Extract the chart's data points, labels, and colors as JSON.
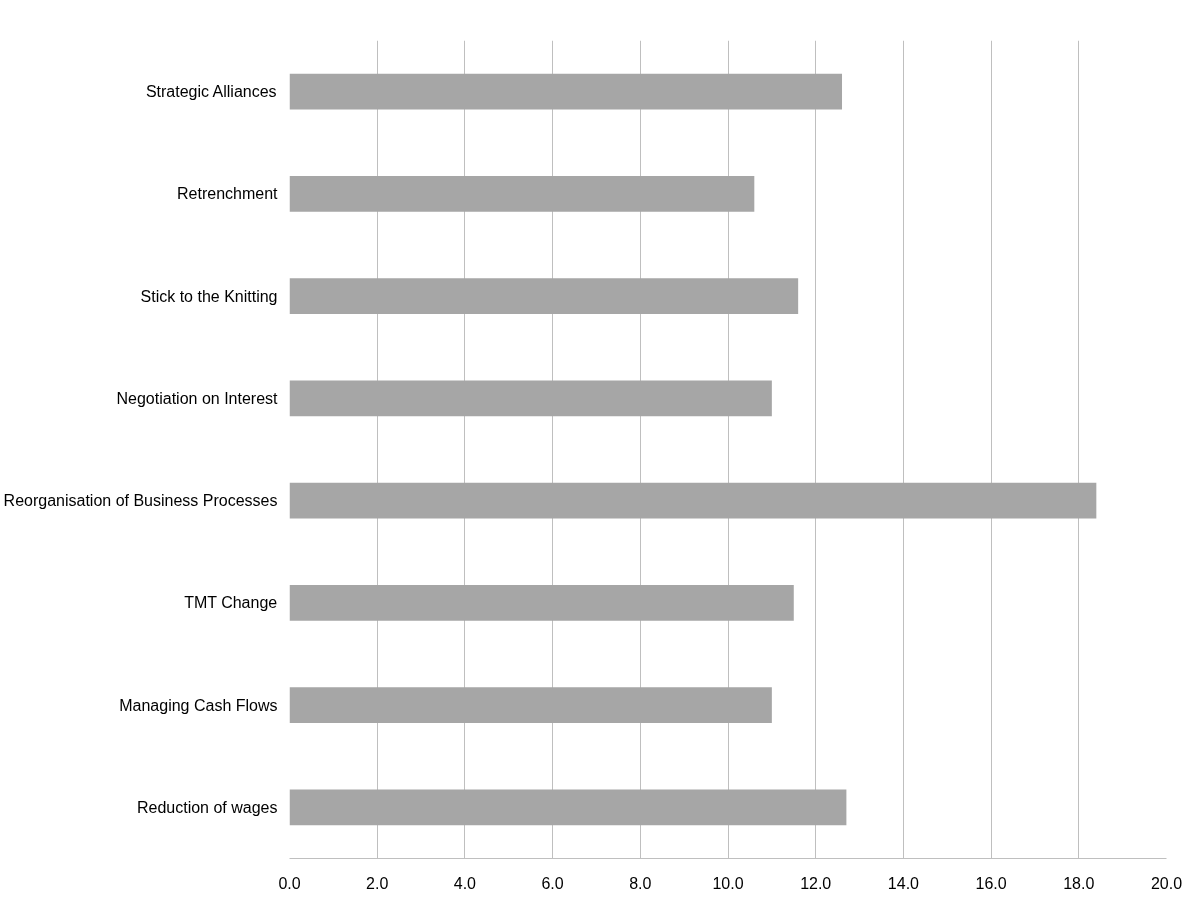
{
  "chart_data": {
    "type": "bar",
    "orientation": "horizontal",
    "categories": [
      "Strategic Alliances",
      "Retrenchment",
      "Stick to the Knitting",
      "Negotiation on Interest",
      "Reorganisation of Business Processes",
      "TMT Change",
      "Managing Cash Flows",
      "Reduction of wages"
    ],
    "values": [
      12.6,
      10.6,
      11.6,
      11.0,
      18.4,
      11.5,
      11.0,
      12.7
    ],
    "color": "#a6a6a6",
    "xlim": [
      0,
      20
    ],
    "xticks": [
      {
        "value": 0,
        "label": "0.0"
      },
      {
        "value": 2,
        "label": "2.0"
      },
      {
        "value": 4,
        "label": "4.0"
      },
      {
        "value": 6,
        "label": "6.0"
      },
      {
        "value": 8,
        "label": "8.0"
      },
      {
        "value": 10,
        "label": "10.0"
      },
      {
        "value": 12,
        "label": "12.0"
      },
      {
        "value": 14,
        "label": "14.0"
      },
      {
        "value": 16,
        "label": "16.0"
      },
      {
        "value": 18,
        "label": "18.0"
      },
      {
        "value": 20,
        "label": "20.0"
      }
    ],
    "grid": "x"
  }
}
